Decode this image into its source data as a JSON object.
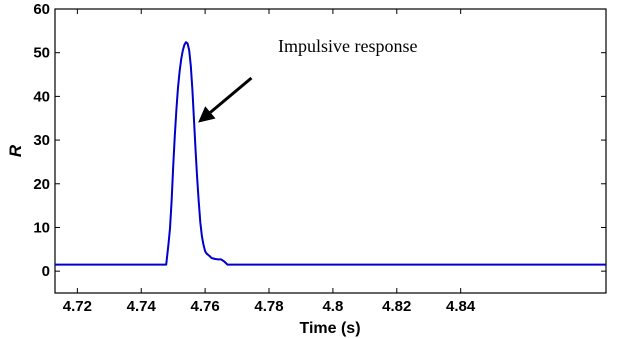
{
  "chart_data": {
    "type": "line",
    "title": "",
    "xlabel": "Time (s)",
    "ylabel": "R",
    "xlim": [
      4.713,
      4.8855
    ],
    "ylim": [
      -5,
      60
    ],
    "xticks": [
      4.72,
      4.74,
      4.76,
      4.78,
      4.8,
      4.82,
      4.84
    ],
    "xtick_labels": [
      "4.72",
      "4.74",
      "4.76",
      "4.78",
      "4.8",
      "4.82",
      "4.84"
    ],
    "yticks": [
      0,
      10,
      20,
      30,
      40,
      50,
      60
    ],
    "ytick_labels": [
      "0",
      "10",
      "20",
      "30",
      "40",
      "50",
      "60"
    ],
    "grid": false,
    "line_color": "#0000cc",
    "series": [
      {
        "x": [
          4.713,
          4.7478,
          4.7485,
          4.749,
          4.7495,
          4.75,
          4.7505,
          4.751,
          4.7515,
          4.752,
          4.7525,
          4.753,
          4.7535,
          4.754,
          4.7545,
          4.755,
          4.7555,
          4.756,
          4.7565,
          4.757,
          4.7575,
          4.758,
          4.7585,
          4.759,
          4.7595,
          4.76,
          4.7605,
          4.761,
          4.7615,
          4.762,
          4.763,
          4.764,
          4.765,
          4.766,
          4.767,
          4.768,
          4.8855
        ],
        "values": [
          1.5,
          1.5,
          6.0,
          9.8,
          16.0,
          24.0,
          31.0,
          37.0,
          42.0,
          45.7,
          48.5,
          50.5,
          51.8,
          52.4,
          52.1,
          50.5,
          47.0,
          41.5,
          35.0,
          28.0,
          21.5,
          16.0,
          11.2,
          8.0,
          6.0,
          4.6,
          4.0,
          3.7,
          3.4,
          3.0,
          2.8,
          2.7,
          2.7,
          2.2,
          1.5,
          1.5,
          1.5
        ]
      }
    ],
    "annotation": {
      "text": "Impulsive response",
      "arrow_from": [
        4.7745,
        44.2
      ],
      "arrow_to": [
        4.7578,
        34.0
      ]
    }
  }
}
